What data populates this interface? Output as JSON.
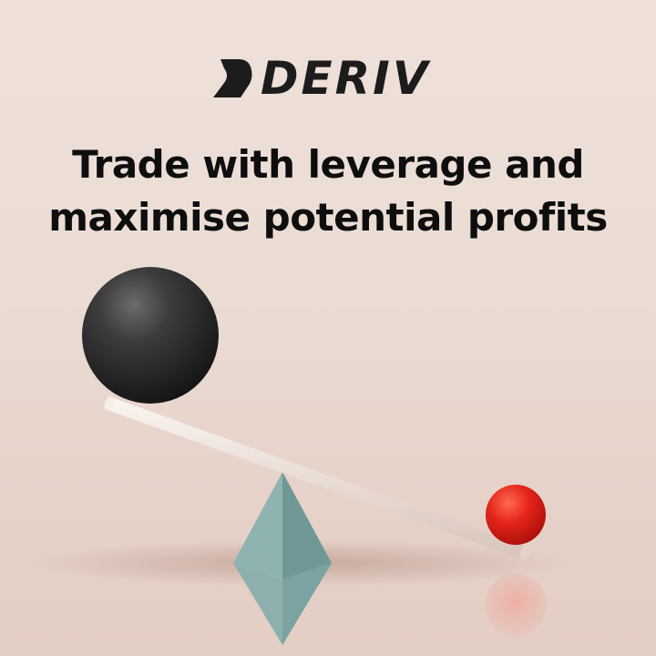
{
  "brand": {
    "name": "DERIV",
    "logo_icon": "deriv-chevron-icon",
    "text_color": "#1c1c1c"
  },
  "headline": {
    "line1": "Trade with leverage and",
    "line2": "maximise potential profits"
  },
  "colors": {
    "background": "#ebdcd3",
    "heavy_ball": "#2f2f2f",
    "light_ball": "#e5251b",
    "fulcrum": "#7fa6a4",
    "lever": "#f4ebe4"
  }
}
